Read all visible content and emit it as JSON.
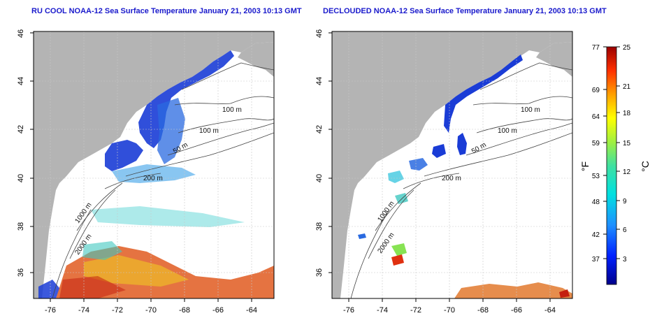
{
  "panels": [
    {
      "title": "RU COOL NOAA-12 Sea Surface Temperature January 21, 2003 10:13 GMT",
      "x_ticks": [
        "-76",
        "-74",
        "-72",
        "-70",
        "-68",
        "-66",
        "-64"
      ],
      "y_ticks": [
        "36",
        "38",
        "40",
        "42",
        "44",
        "46"
      ],
      "contour_labels": [
        "100 m",
        "100 m",
        "50 m",
        "200 m",
        "1000 m",
        "2000 m"
      ]
    },
    {
      "title": "DECLOUDED NOAA-12 Sea Surface Temperature January 21, 2003 10:13 GMT",
      "x_ticks": [
        "-76",
        "-74",
        "-72",
        "-70",
        "-68",
        "-66",
        "-64"
      ],
      "y_ticks": [
        "36",
        "38",
        "40",
        "42",
        "44",
        "46"
      ],
      "contour_labels": [
        "100 m",
        "100 m",
        "50 m",
        "200 m",
        "1000 m",
        "2000 m"
      ]
    }
  ],
  "colorbar": {
    "unit_left": "°F",
    "unit_right": "°C",
    "fahrenheit_ticks": [
      "77",
      "69",
      "64",
      "59",
      "53",
      "48",
      "42",
      "37"
    ],
    "celsius_ticks": [
      "25",
      "21",
      "18",
      "15",
      "12",
      "9",
      "6",
      "3"
    ]
  },
  "colors": {
    "land": "#b4b4b4",
    "title": "#1a1acc",
    "cold": "#1a3cd6",
    "warm": "#d42a10"
  }
}
